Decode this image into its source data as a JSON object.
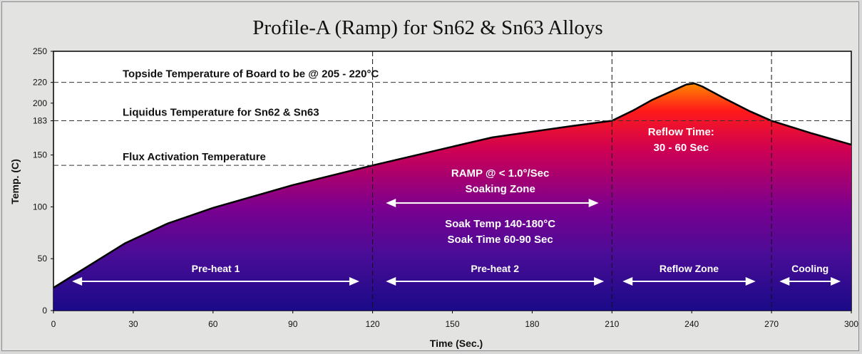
{
  "chart_data": {
    "type": "area",
    "title": "Profile-A (Ramp) for Sn62 & Sn63 Alloys",
    "xlabel": "Time (Sec.)",
    "ylabel": "Temp. (C)",
    "xlim": [
      0,
      300
    ],
    "ylim": [
      0,
      250
    ],
    "x_ticks": [
      0,
      30,
      60,
      90,
      120,
      150,
      180,
      210,
      240,
      270,
      300
    ],
    "y_ticks": [
      0,
      50,
      100,
      150,
      183,
      200,
      220,
      250
    ],
    "series": [
      {
        "x": [
          0,
          10,
          27,
          43,
          60,
          90,
          120,
          150,
          165,
          195,
          210,
          218,
          225,
          232,
          238,
          241,
          244,
          252,
          262,
          270,
          285,
          300
        ],
        "y": [
          22,
          38,
          65,
          84,
          99,
          121,
          140,
          158,
          167,
          178,
          183,
          193,
          203,
          211,
          218,
          219,
          216,
          205,
          192,
          183,
          171,
          160
        ]
      }
    ],
    "gradient_colors": [
      "#ff8800",
      "#ff1a1a",
      "#cc0055",
      "#7a0090",
      "#4a0c96",
      "#1a0a88"
    ],
    "reference_lines": [
      {
        "y": 220,
        "label": "Topside Temperature of Board to be @ 205 - 220°C"
      },
      {
        "y": 183,
        "label": "Liquidus Temperature for Sn62 & Sn63"
      },
      {
        "y": 140,
        "label": "Flux Activation Temperature"
      }
    ],
    "zone_dividers": [
      120,
      210,
      270
    ],
    "zones": [
      {
        "label": "Pre-heat 1",
        "from": 7,
        "to": 115
      },
      {
        "label": "Pre-heat 2",
        "from": 125,
        "to": 207
      },
      {
        "label": "Reflow Zone",
        "from": 214,
        "to": 264
      },
      {
        "label": "Cooling",
        "from": 273,
        "to": 296
      }
    ],
    "annotations": {
      "reflow_time": [
        "Reflow Time:",
        "30 - 60 Sec"
      ],
      "ramp": [
        "RAMP @ < 1.0°/Sec",
        "Soaking Zone"
      ],
      "soak": [
        "Soak Temp 140-180°C",
        "Soak Time 60-90 Sec"
      ]
    },
    "grid": false,
    "legend": "none"
  }
}
